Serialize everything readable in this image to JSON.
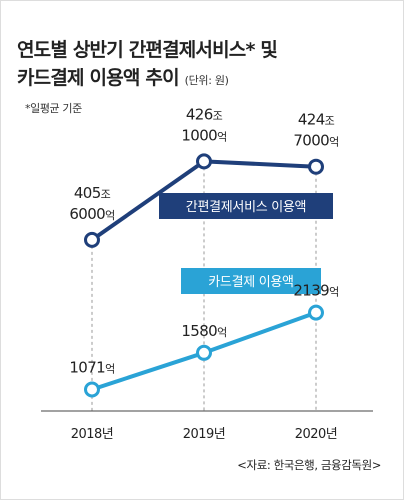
{
  "title_line1": "연도별 상반기 간편결제서비스* 및",
  "title_line2": "카드결제 이용액 추이",
  "unit": "(단위: 원)",
  "note": "*일평균 기준",
  "source": "<자료: 한국은행, 금융감독원>",
  "chart_data": {
    "type": "line",
    "categories": [
      "2018년",
      "2019년",
      "2020년"
    ],
    "value_unit": "억원",
    "series": [
      {
        "name": "간편결제서비스 이용액",
        "color": "#1f3f7a",
        "values": [
          4056000,
          4261000,
          4247000
        ],
        "labels": [
          [
            "405조",
            "6000억"
          ],
          [
            "426조",
            "1000억"
          ],
          [
            "424조",
            "7000억"
          ]
        ]
      },
      {
        "name": "카드결제 이용액",
        "color": "#2aa3d6",
        "values": [
          1071,
          1580,
          2139
        ],
        "labels": [
          [
            "1071억"
          ],
          [
            "1580억"
          ],
          [
            "2139억"
          ]
        ]
      }
    ],
    "grid": false,
    "legend": "series labels placed as tags on the lines"
  }
}
